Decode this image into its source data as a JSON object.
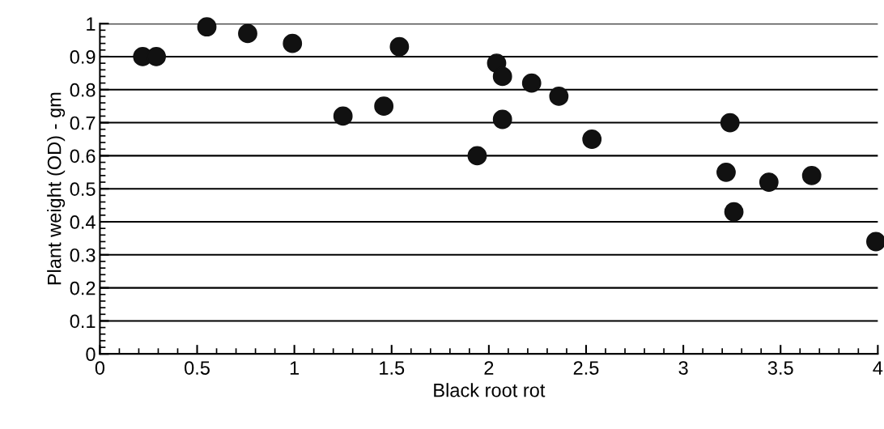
{
  "chart_data": {
    "type": "scatter",
    "xlabel": "Black root rot",
    "ylabel": "Plant weight (OD) - gm",
    "x": [
      0.22,
      0.29,
      0.55,
      0.76,
      0.99,
      1.25,
      1.46,
      1.54,
      1.94,
      2.04,
      2.07,
      2.07,
      2.22,
      2.36,
      2.53,
      3.22,
      3.24,
      3.26,
      3.44,
      3.66,
      3.99
    ],
    "values": [
      0.9,
      0.9,
      0.99,
      0.97,
      0.94,
      0.72,
      0.75,
      0.93,
      0.6,
      0.88,
      0.84,
      0.71,
      0.82,
      0.78,
      0.65,
      0.55,
      0.7,
      0.43,
      0.52,
      0.54,
      0.34
    ],
    "color": "#111111",
    "marker": "circle",
    "xlim": [
      0,
      4
    ],
    "xticks": [
      0,
      0.5,
      1,
      1.5,
      2,
      2.5,
      3,
      3.5,
      4
    ],
    "ylim": [
      0,
      1
    ],
    "yticks": [
      0,
      0.1,
      0.2,
      0.3,
      0.4,
      0.5,
      0.6,
      0.7,
      0.8,
      0.9,
      1
    ],
    "grid": "y"
  }
}
